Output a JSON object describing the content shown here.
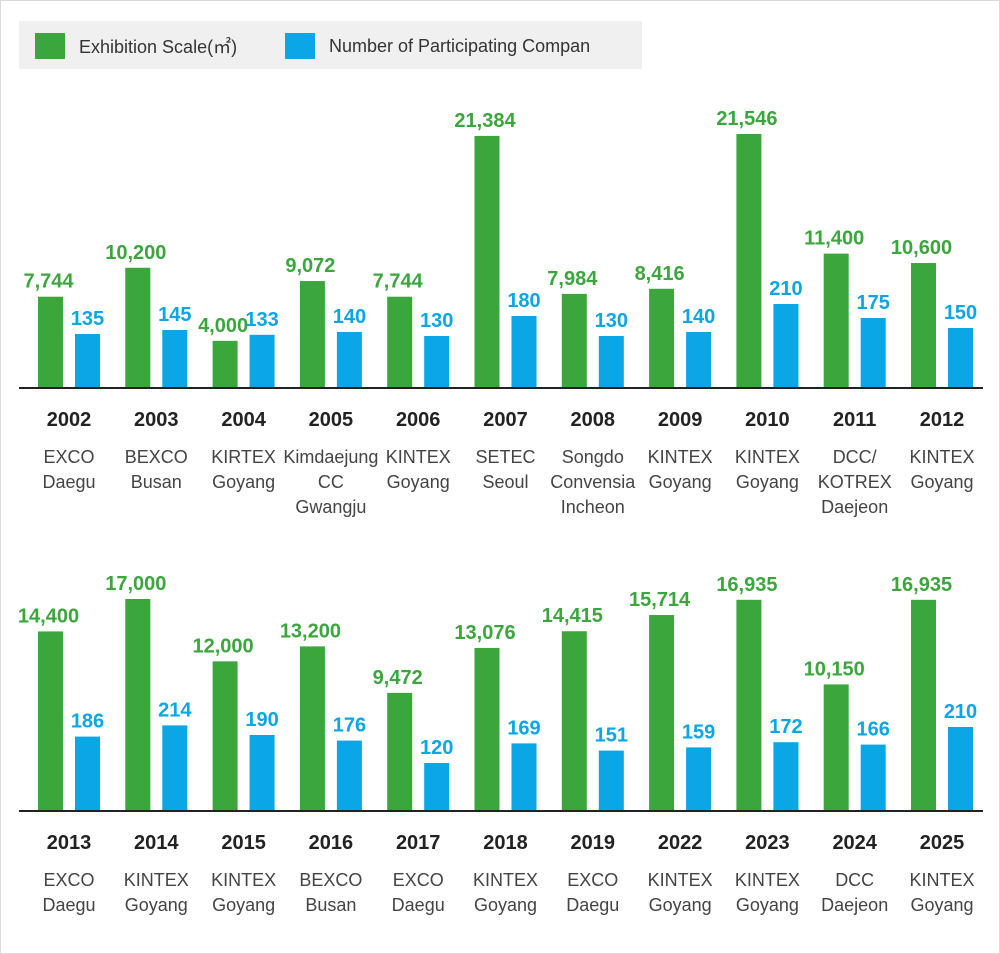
{
  "legend": {
    "scale_label": "Exhibition Scale(㎡)",
    "companies_label": "Number of Participating Compan"
  },
  "colors": {
    "scale": "#3aa63c",
    "companies": "#0aa6e6",
    "year_text": "#222222",
    "venue_text": "#444444",
    "axis": "#222222"
  },
  "chart_data": [
    {
      "type": "bar",
      "title": "",
      "categories": [
        "2002",
        "2003",
        "2004",
        "2005",
        "2006",
        "2007",
        "2008",
        "2009",
        "2010",
        "2011",
        "2012"
      ],
      "venues": [
        [
          "EXCO",
          "Daegu"
        ],
        [
          "BEXCO",
          "Busan"
        ],
        [
          "KIRTEX",
          "Goyang"
        ],
        [
          "Kimdaejung",
          "CC",
          "Gwangju"
        ],
        [
          "KINTEX",
          "Goyang"
        ],
        [
          "SETEC",
          "Seoul"
        ],
        [
          "Songdo",
          "Convensia",
          "Incheon"
        ],
        [
          "KINTEX",
          "Goyang"
        ],
        [
          "KINTEX",
          "Goyang"
        ],
        [
          "DCC/",
          "KOTREX",
          "Daejeon"
        ],
        [
          "KINTEX",
          "Goyang"
        ]
      ],
      "series": [
        {
          "name": "Exhibition Scale(㎡)",
          "values": [
            7744,
            10200,
            4000,
            9072,
            7744,
            21384,
            7984,
            8416,
            21546,
            11400,
            10600
          ],
          "labels": [
            "7,744",
            "10,200",
            "4,000",
            "9,072",
            "7,744",
            "21,384",
            "7,984",
            "8,416",
            "21,546",
            "11,400",
            "10,600"
          ]
        },
        {
          "name": "Number of Participating Compan",
          "values": [
            135,
            145,
            133,
            140,
            130,
            180,
            130,
            140,
            210,
            175,
            150
          ],
          "labels": [
            "135",
            "145",
            "133",
            "140",
            "130",
            "180",
            "130",
            "140",
            "210",
            "175",
            "150"
          ]
        }
      ]
    },
    {
      "type": "bar",
      "title": "",
      "categories": [
        "2013",
        "2014",
        "2015",
        "2016",
        "2017",
        "2018",
        "2019",
        "2022",
        "2023",
        "2024",
        "2025"
      ],
      "venues": [
        [
          "EXCO",
          "Daegu"
        ],
        [
          "KINTEX",
          "Goyang"
        ],
        [
          "KINTEX",
          "Goyang"
        ],
        [
          "BEXCO",
          "Busan"
        ],
        [
          "EXCO",
          "Daegu"
        ],
        [
          "KINTEX",
          "Goyang"
        ],
        [
          "EXCO",
          "Daegu"
        ],
        [
          "KINTEX",
          "Goyang"
        ],
        [
          "KINTEX",
          "Goyang"
        ],
        [
          "DCC",
          "Daejeon"
        ],
        [
          "KINTEX",
          "Goyang"
        ]
      ],
      "series": [
        {
          "name": "Exhibition Scale(㎡)",
          "values": [
            14400,
            17000,
            12000,
            13200,
            9472,
            13076,
            14415,
            15714,
            16935,
            10150,
            16935
          ],
          "labels": [
            "14,400",
            "17,000",
            "12,000",
            "13,200",
            "9,472",
            "13,076",
            "14,415",
            "15,714",
            "16,935",
            "10,150",
            "16,935"
          ]
        },
        {
          "name": "Number of Participating Compan",
          "values": [
            186,
            214,
            190,
            176,
            120,
            169,
            151,
            159,
            172,
            166,
            210
          ],
          "labels": [
            "186",
            "214",
            "190",
            "176",
            "120",
            "169",
            "151",
            "159",
            "172",
            "166",
            "210"
          ]
        }
      ]
    }
  ]
}
